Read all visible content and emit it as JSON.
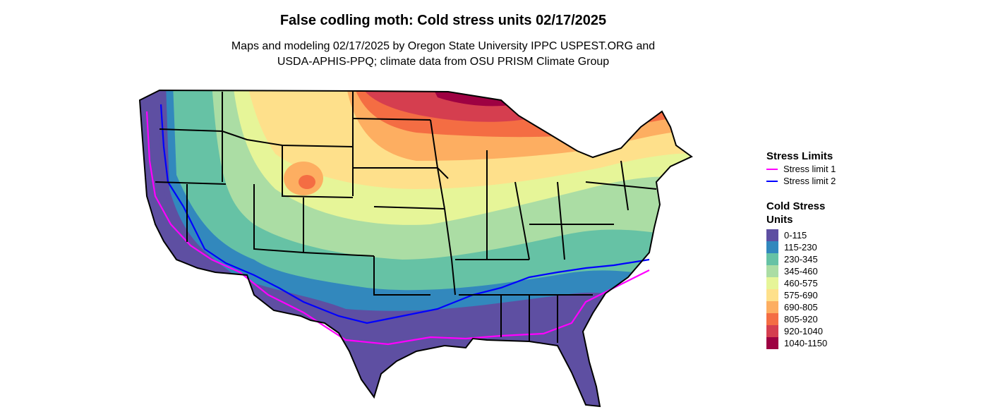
{
  "title": "False codling moth: Cold stress units 02/17/2025",
  "subtitle_line1": "Maps and modeling 02/17/2025 by Oregon State University IPPC USPEST.ORG and",
  "subtitle_line2": "USDA-APHIS-PPQ; climate data from OSU PRISM Climate Group",
  "legend": {
    "limits_title": "Stress Limits",
    "limits": [
      {
        "label": "Stress limit 1",
        "color": "#ff00ff"
      },
      {
        "label": "Stress limit 2",
        "color": "#0000ff"
      }
    ],
    "units_title_line1": "Cold Stress",
    "units_title_line2": "Units",
    "classes": [
      {
        "label": "0-115",
        "color": "#5e4fa2"
      },
      {
        "label": "115-230",
        "color": "#3288bd"
      },
      {
        "label": "230-345",
        "color": "#66c2a5"
      },
      {
        "label": "345-460",
        "color": "#abdda4"
      },
      {
        "label": "460-575",
        "color": "#e6f598"
      },
      {
        "label": "575-690",
        "color": "#fee08b"
      },
      {
        "label": "690-805",
        "color": "#fdae61"
      },
      {
        "label": "805-920",
        "color": "#f46d43"
      },
      {
        "label": "920-1040",
        "color": "#d53e4f"
      },
      {
        "label": "1040-1150",
        "color": "#9e0142"
      }
    ]
  }
}
